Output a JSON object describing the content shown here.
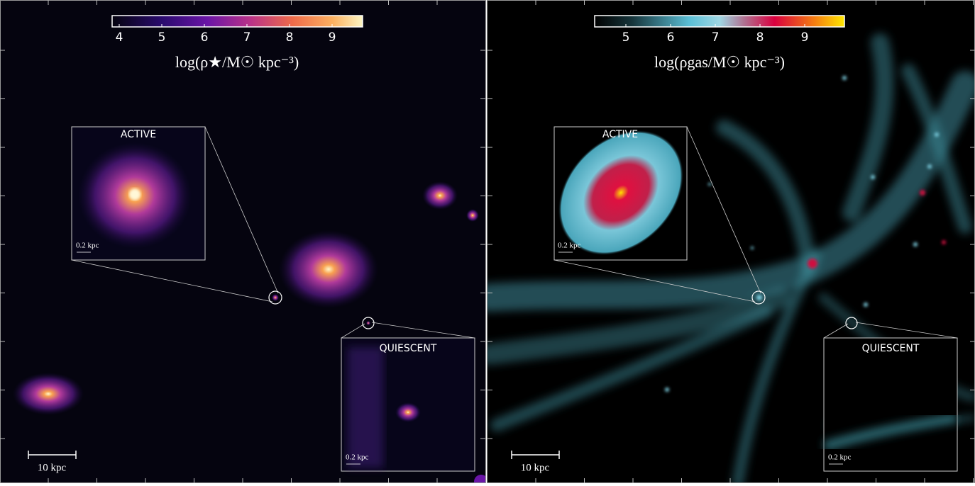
{
  "panels": [
    {
      "colorbar": {
        "ticks": [
          "4",
          "5",
          "6",
          "7",
          "8",
          "9"
        ],
        "label": "log(ρ★/M☉ kpc⁻³)"
      },
      "insets": [
        {
          "label": "ACTIVE",
          "scale": "0.2 kpc"
        },
        {
          "label": "QUIESCENT",
          "scale": "0.2 kpc"
        }
      ],
      "scale_bar": "10 kpc"
    },
    {
      "colorbar": {
        "ticks": [
          "5",
          "6",
          "7",
          "8",
          "9"
        ],
        "label": "log(ρgas/M☉ kpc⁻³)"
      },
      "insets": [
        {
          "label": "ACTIVE",
          "scale": "0.2 kpc"
        },
        {
          "label": "QUIESCENT",
          "scale": "0.2 kpc"
        }
      ],
      "scale_bar": "10 kpc"
    }
  ]
}
